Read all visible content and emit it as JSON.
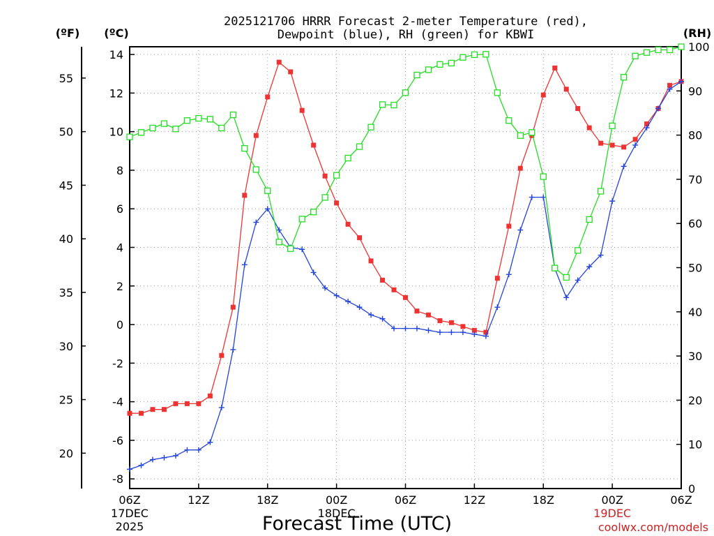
{
  "chart_data": {
    "type": "line",
    "title_line1": "2025121706 HRRR Forecast 2-meter Temperature (red),",
    "title_line2": "Dewpoint (blue), RH (green) for KBWI",
    "left_unit_f": "(ºF)",
    "left_unit_c": "(ºC)",
    "right_unit": "(RH)",
    "xlabel": "Forecast Time (UTC)",
    "credit": "coolwx.com/models",
    "x_ticks": [
      {
        "hour": 0,
        "label": "06Z",
        "sub1": "17DEC",
        "sub2": "2025"
      },
      {
        "hour": 6,
        "label": "12Z",
        "sub1": "",
        "sub2": ""
      },
      {
        "hour": 12,
        "label": "18Z",
        "sub1": "",
        "sub2": ""
      },
      {
        "hour": 18,
        "label": "00Z",
        "sub1": "18DEC",
        "sub2": ""
      },
      {
        "hour": 24,
        "label": "06Z",
        "sub1": "",
        "sub2": ""
      },
      {
        "hour": 30,
        "label": "12Z",
        "sub1": "",
        "sub2": ""
      },
      {
        "hour": 36,
        "label": "18Z",
        "sub1": "",
        "sub2": ""
      },
      {
        "hour": 42,
        "label": "00Z",
        "sub1": "19DEC",
        "sub2": ""
      },
      {
        "hour": 48,
        "label": "06Z",
        "sub1": "",
        "sub2": ""
      }
    ],
    "xlim": [
      0,
      48
    ],
    "ylim_c": [
      -8.5,
      14.4
    ],
    "ylim_rh": [
      0,
      100
    ],
    "celsius_ticks": [
      "-8",
      "-6",
      "-4",
      "-2",
      "0",
      "2",
      "4",
      "6",
      "8",
      "10",
      "12",
      "14"
    ],
    "fahrenheit_ticks": [
      "20",
      "25",
      "30",
      "35",
      "40",
      "45",
      "50",
      "55"
    ],
    "rh_ticks": [
      "0",
      "10",
      "20",
      "30",
      "40",
      "50",
      "60",
      "70",
      "80",
      "90",
      "100"
    ],
    "grid": true,
    "colors": {
      "temperature": "#ee3333",
      "dewpoint": "#2244dd",
      "rh": "#22dd22",
      "credit": "#cc2222"
    },
    "series": [
      {
        "key": "temperature",
        "values": [
          -4.6,
          -4.6,
          -4.4,
          -4.4,
          -4.1,
          -4.1,
          -4.1,
          -3.7,
          -1.6,
          0.9,
          6.7,
          9.8,
          11.8,
          13.6,
          13.1,
          11.1,
          9.3,
          7.7,
          6.3,
          5.2,
          4.5,
          3.3,
          2.3,
          1.8,
          1.4,
          0.7,
          0.5,
          0.2,
          0.1,
          -0.1,
          -0.3,
          -0.4,
          2.4,
          5.1,
          8.1,
          9.8,
          11.9,
          13.3,
          12.2,
          11.2,
          10.2,
          9.4,
          9.3,
          9.2,
          9.6,
          10.4,
          11.2,
          12.4,
          12.6
        ]
      },
      {
        "key": "dewpoint",
        "values": [
          -7.5,
          -7.3,
          -7.0,
          -6.9,
          -6.8,
          -6.5,
          -6.5,
          -6.1,
          -4.3,
          -1.3,
          3.1,
          5.3,
          6.0,
          4.9,
          4.0,
          3.9,
          2.7,
          1.9,
          1.5,
          1.2,
          0.9,
          0.5,
          0.3,
          -0.2,
          -0.2,
          -0.2,
          -0.3,
          -0.4,
          -0.4,
          -0.4,
          -0.5,
          -0.6,
          0.9,
          2.6,
          4.9,
          6.6,
          6.6,
          2.9,
          1.4,
          2.3,
          3.0,
          3.6,
          6.4,
          8.2,
          9.3,
          10.2,
          11.2,
          12.2,
          12.6
        ]
      },
      {
        "key": "rh",
        "values": [
          79.6,
          80.6,
          81.6,
          82.6,
          81.4,
          83.3,
          83.8,
          83.6,
          81.6,
          84.6,
          77.0,
          72.2,
          67.4,
          55.8,
          54.3,
          61.0,
          62.6,
          65.9,
          70.9,
          74.8,
          77.4,
          81.8,
          86.9,
          86.8,
          89.6,
          93.6,
          94.8,
          96.0,
          96.3,
          97.6,
          98.2,
          98.3,
          89.6,
          83.3,
          79.9,
          80.6,
          70.6,
          49.9,
          47.8,
          53.9,
          60.9,
          67.3,
          82.1,
          93.1,
          97.9,
          98.7,
          99.3,
          99.3,
          100.0
        ]
      }
    ]
  }
}
